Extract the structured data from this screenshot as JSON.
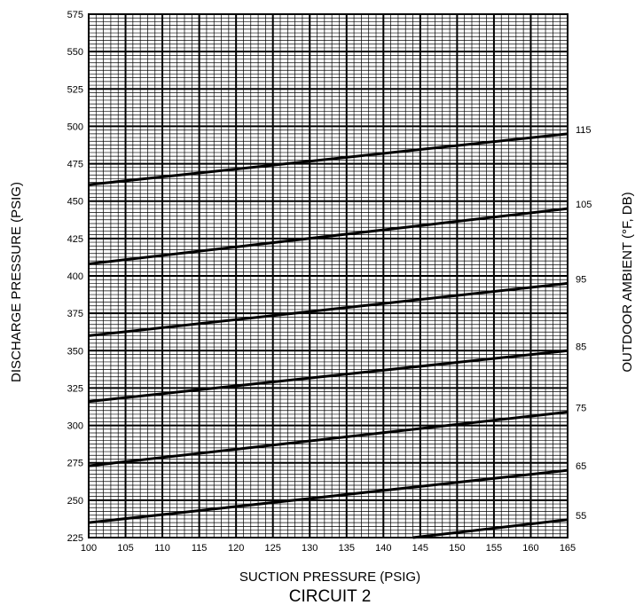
{
  "chart_data": {
    "type": "line",
    "xlabel": "SUCTION PRESSURE (PSIG)",
    "ylabel": "DISCHARGE PRESSURE (PSIG)",
    "y2label": "OUTDOOR AMBIENT (°F, DB)",
    "caption": "CIRCUIT 2",
    "xlim": [
      100,
      165
    ],
    "ylim": [
      225,
      575
    ],
    "x_ticks": [
      "100",
      "105",
      "110",
      "115",
      "120",
      "125",
      "130",
      "135",
      "140",
      "145",
      "150",
      "155",
      "160",
      "165"
    ],
    "y_ticks": [
      "225",
      "250",
      "275",
      "300",
      "325",
      "350",
      "375",
      "400",
      "425",
      "450",
      "475",
      "500",
      "525",
      "550",
      "575"
    ],
    "grid": true,
    "series": [
      {
        "name": "115",
        "x": [
          100,
          165
        ],
        "y": [
          461,
          495
        ]
      },
      {
        "name": "105",
        "x": [
          100,
          165
        ],
        "y": [
          408,
          445
        ]
      },
      {
        "name": "95",
        "x": [
          100,
          165
        ],
        "y": [
          360,
          395
        ]
      },
      {
        "name": "85",
        "x": [
          100,
          165
        ],
        "y": [
          316,
          350
        ]
      },
      {
        "name": "75",
        "x": [
          100,
          165
        ],
        "y": [
          273,
          309
        ]
      },
      {
        "name": "65",
        "x": [
          100,
          165
        ],
        "y": [
          235,
          270
        ]
      },
      {
        "name": "55",
        "x": [
          144,
          165
        ],
        "y": [
          225,
          237
        ]
      }
    ]
  }
}
